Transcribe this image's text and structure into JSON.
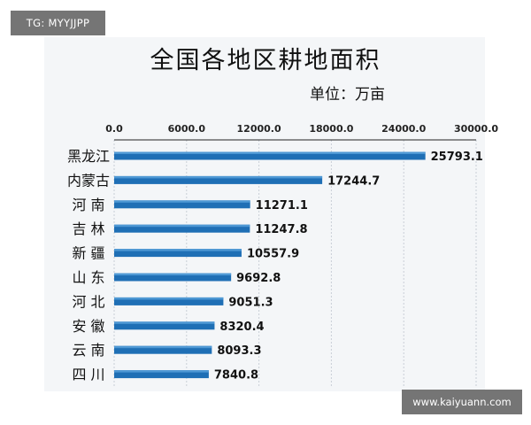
{
  "watermarks": {
    "left": "TG: MYYJJPP",
    "right": "www.kaiyuann.com"
  },
  "colors": {
    "bar": "#1f6fb5",
    "bar_highlight": "#5aa2dc",
    "grid": "#c9cfd6",
    "axis": "#222222"
  },
  "chart_data": {
    "type": "bar",
    "orientation": "horizontal",
    "title": "全国各地区耕地面积",
    "unit": "单位：万亩",
    "xlim": [
      0,
      30000
    ],
    "xticks": [
      0,
      6000,
      12000,
      18000,
      24000,
      30000
    ],
    "xtick_labels": [
      "0.0",
      "6000.0",
      "12000.0",
      "18000.0",
      "24000.0",
      "30000.0"
    ],
    "categories": [
      "黑龙江",
      "内蒙古",
      "河 南",
      "吉 林",
      "新 疆",
      "山 东",
      "河 北",
      "安 徽",
      "云 南",
      "四 川"
    ],
    "values": [
      25793.1,
      17244.7,
      11271.1,
      11247.8,
      10557.9,
      9692.8,
      9051.3,
      8320.4,
      8093.3,
      7840.8
    ],
    "value_labels": [
      "25793.1",
      "17244.7",
      "11271.1",
      "11247.8",
      "10557.9",
      "9692.8",
      "9051.3",
      "8320.4",
      "8093.3",
      "7840.8"
    ],
    "grid": true,
    "legend": "none"
  }
}
